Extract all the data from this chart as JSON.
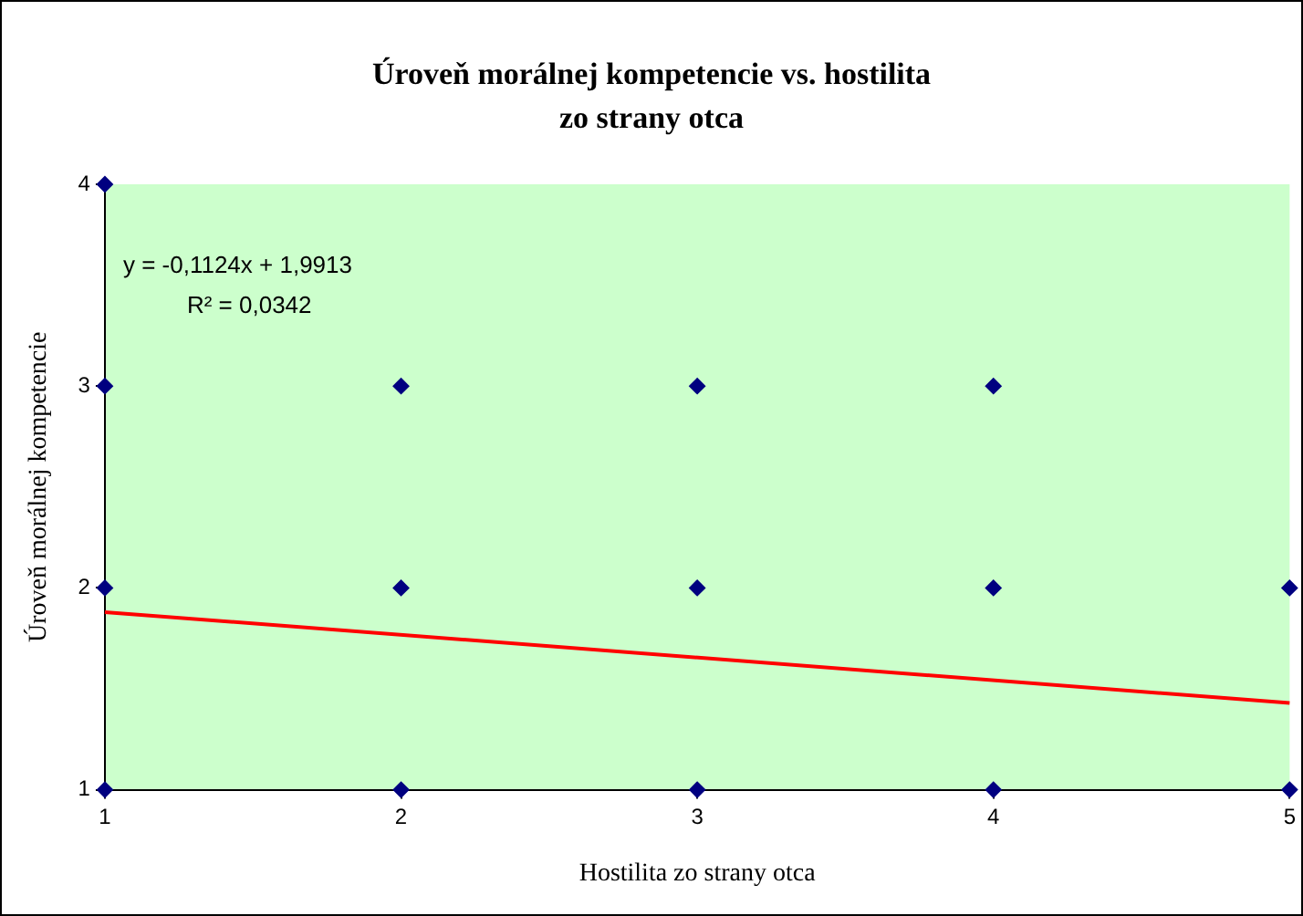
{
  "chart_data": {
    "type": "scatter",
    "title": "Úroveň morálnej kompetencie vs. hostilita zo strany otca",
    "xlabel": "Hostilita zo strany otca",
    "ylabel": "Úroveň morálnej kompetencie",
    "annotations": [
      "y = -0,1124x + 1,9913",
      "R² = 0,0342"
    ],
    "series": [
      {
        "color": "#000080",
        "marker": "diamond",
        "x": [
          1,
          1,
          1,
          1,
          2,
          2,
          2,
          3,
          3,
          3,
          4,
          4,
          4,
          5,
          5
        ],
        "values": [
          4,
          3,
          2,
          1,
          3,
          2,
          1,
          3,
          2,
          1,
          3,
          2,
          1,
          2,
          1
        ]
      },
      {
        "type": "line",
        "color": "#ff0000",
        "marker": "none",
        "line_style": "solid",
        "x": [
          1,
          5
        ],
        "values": [
          1.88,
          1.43
        ]
      }
    ],
    "xlim": [
      1,
      5
    ],
    "xticks": [
      1,
      2,
      3,
      4,
      5
    ],
    "ylim": [
      1,
      4
    ],
    "yticks": [
      1,
      2,
      3,
      4
    ],
    "legend": false
  }
}
